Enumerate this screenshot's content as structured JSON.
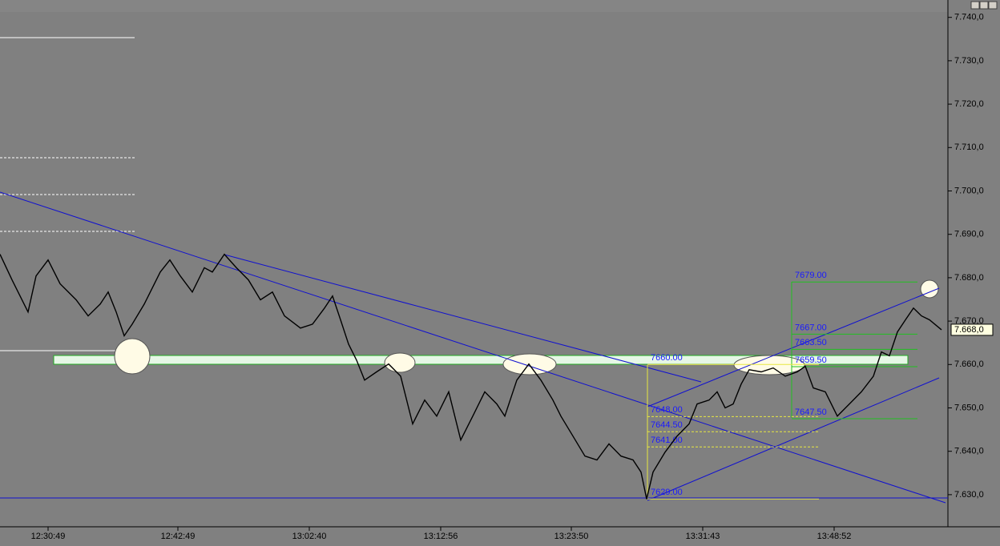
{
  "chart_data": {
    "type": "line",
    "xlim": [
      0,
      1183
    ],
    "xticks": [
      {
        "value": 60,
        "label": "12:30:49"
      },
      {
        "value": 222,
        "label": "12:42:49"
      },
      {
        "value": 386,
        "label": "13:02:40"
      },
      {
        "value": 550,
        "label": "13:12:56"
      },
      {
        "value": 713,
        "label": "13:23:50"
      },
      {
        "value": 877,
        "label": "13:31:43"
      },
      {
        "value": 1041,
        "label": "13:48:52"
      }
    ],
    "ylim": [
      7622.6,
      7744
    ],
    "yticks": [
      {
        "value": 7630,
        "label": "7.630,0"
      },
      {
        "value": 7640,
        "label": "7.640,0"
      },
      {
        "value": 7650,
        "label": "7.650,0"
      },
      {
        "value": 7660,
        "label": "7.660,0"
      },
      {
        "value": 7670,
        "label": "7.670,0"
      },
      {
        "value": 7680,
        "label": "7.680,0"
      },
      {
        "value": 7690,
        "label": "7.690,0"
      },
      {
        "value": 7700,
        "label": "7.700,0"
      },
      {
        "value": 7710,
        "label": "7.710,0"
      },
      {
        "value": 7720,
        "label": "7.720,0"
      },
      {
        "value": 7730,
        "label": "7.730,0"
      },
      {
        "value": 7740,
        "label": "7.740,0"
      }
    ],
    "series": [
      {
        "color": "#000000",
        "x": [
          0,
          15,
          35,
          45,
          60,
          75,
          95,
          110,
          125,
          135,
          145,
          155,
          165,
          180,
          200,
          212,
          225,
          240,
          255,
          265,
          280,
          295,
          310,
          325,
          340,
          355,
          375,
          390,
          405,
          415,
          425,
          435,
          445,
          455,
          470,
          485,
          500,
          515,
          530,
          545,
          560,
          575,
          590,
          605,
          620,
          630,
          645,
          660,
          675,
          690,
          700,
          715,
          730,
          745,
          760,
          775,
          790,
          800,
          807,
          815,
          830,
          845,
          860,
          870,
          885,
          895,
          905,
          915,
          925,
          935,
          950,
          965,
          980,
          995,
          1005,
          1015,
          1030,
          1045,
          1060,
          1075,
          1090,
          1100,
          1110,
          1120,
          1130,
          1140,
          1150,
          1160,
          1175
        ],
        "values": [
          7685.4,
          7679.5,
          7672.1,
          7680.4,
          7684.1,
          7678.6,
          7674.9,
          7671.2,
          7673.9,
          7676.7,
          7672.1,
          7666.6,
          7669.3,
          7673.9,
          7681.3,
          7684.1,
          7680.4,
          7676.7,
          7682.3,
          7681.3,
          7685.4,
          7682.3,
          7679.5,
          7674.9,
          7676.7,
          7671.2,
          7668.4,
          7669.3,
          7673.0,
          7675.8,
          7670.3,
          7664.7,
          7661.0,
          7656.4,
          7658.3,
          7660.1,
          7657.3,
          7646.3,
          7651.8,
          7648.1,
          7653.7,
          7642.6,
          7648.1,
          7653.7,
          7650.9,
          7648.1,
          7656.4,
          7660.1,
          7656.4,
          7651.8,
          7648.1,
          7643.5,
          7638.9,
          7638.0,
          7641.7,
          7638.9,
          7638.0,
          7635.2,
          7629,
          7635.2,
          7639.8,
          7643.5,
          7646.3,
          7650.9,
          7651.8,
          7653.7,
          7650.0,
          7650.9,
          7655.5,
          7658.8,
          7658.3,
          7659.2,
          7657.3,
          7658.3,
          7659.6,
          7654.6,
          7653.7,
          7648.1,
          7650.9,
          7653.7,
          7657.3,
          7662.9,
          7662.0,
          7667.5,
          7670.3,
          7673.0,
          7671.2,
          7670.3,
          7668.0
        ]
      }
    ],
    "last_price": {
      "value": 7668,
      "label": "7.668,0"
    },
    "fib_green": [
      {
        "value": 7679,
        "label": "7679.00"
      },
      {
        "value": 7667,
        "label": "7667.00"
      },
      {
        "value": 7663.5,
        "label": "7663.50"
      },
      {
        "value": 7659.5,
        "label": "7659.50"
      },
      {
        "value": 7647.5,
        "label": "7647.50"
      }
    ],
    "fib_yellow": [
      {
        "value": 7660,
        "label": "7660.00"
      },
      {
        "value": 7648,
        "label": "7648.00"
      },
      {
        "value": 7644.5,
        "label": "7644.50"
      },
      {
        "value": 7641,
        "label": "7641.00"
      },
      {
        "value": 7629,
        "label": "7629.00"
      }
    ]
  }
}
